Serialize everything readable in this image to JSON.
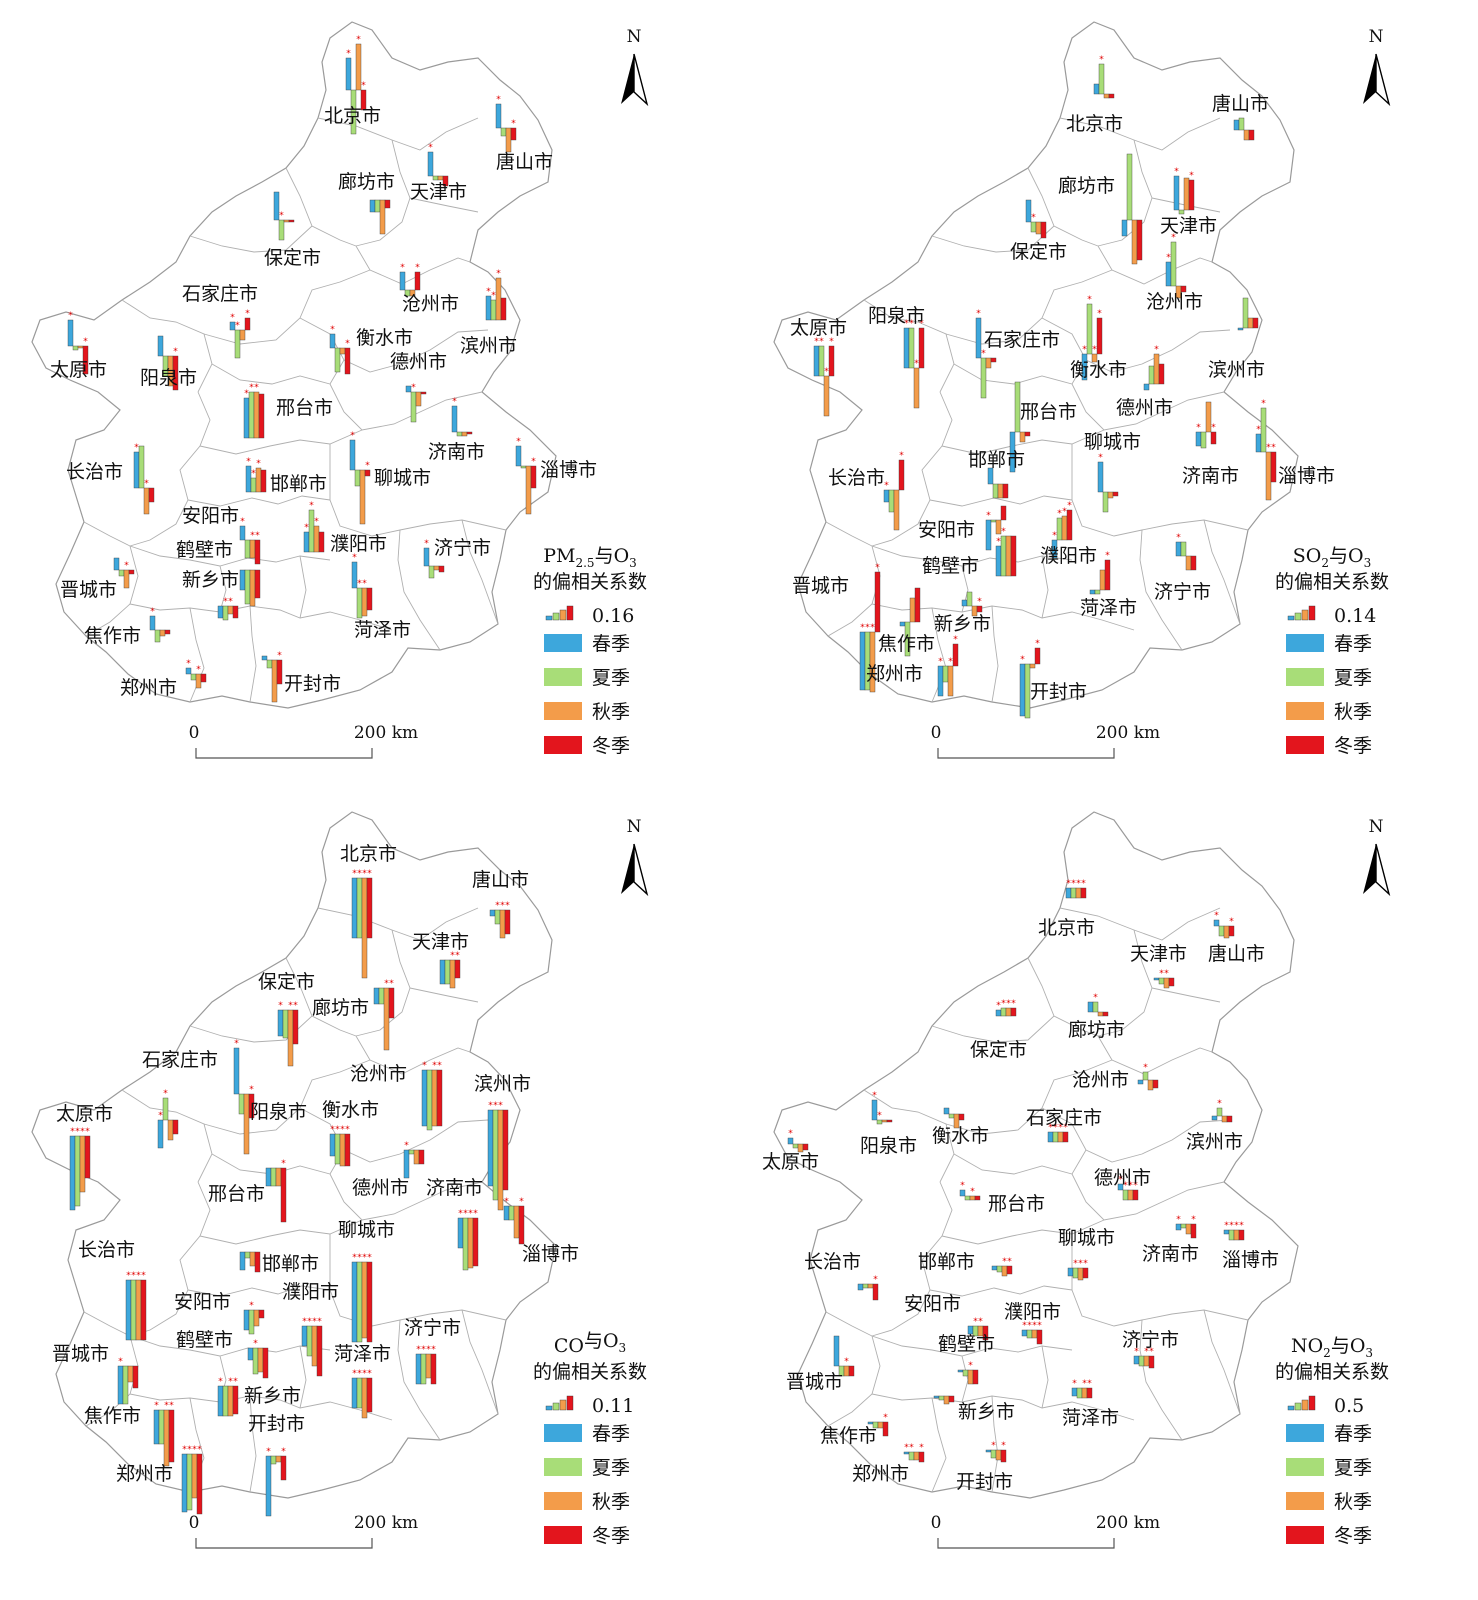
{
  "colors": {
    "spring": "#3da7dc",
    "summer": "#a8dd78",
    "autumn": "#f39c4a",
    "winter": "#e3151d",
    "star": "#e00000"
  },
  "season_labels": [
    "春季",
    "夏季",
    "秋季",
    "冬季"
  ],
  "north_label": "N",
  "scale": {
    "start": "0",
    "end": "200 km"
  },
  "panels": [
    {
      "id": "pm25",
      "legend_title_main": "PM",
      "legend_title_sub1": "2.5",
      "legend_title_mid": "与O",
      "legend_title_sub2": "3",
      "legend_title_line2": "的偏相关系数",
      "legend_ref_value": "0.16",
      "cities": [
        {
          "name": "北京市"
        },
        {
          "name": "唐山市"
        },
        {
          "name": "廊坊市"
        },
        {
          "name": "天津市"
        },
        {
          "name": "保定市"
        },
        {
          "name": "石家庄市"
        },
        {
          "name": "沧州市"
        },
        {
          "name": "衡水市"
        },
        {
          "name": "滨州市"
        },
        {
          "name": "德州市"
        },
        {
          "name": "太原市"
        },
        {
          "name": "阳泉市"
        },
        {
          "name": "邢台市"
        },
        {
          "name": "济南市"
        },
        {
          "name": "淄博市"
        },
        {
          "name": "长治市"
        },
        {
          "name": "聊城市"
        },
        {
          "name": "邯郸市"
        },
        {
          "name": "安阳市"
        },
        {
          "name": "鹤壁市"
        },
        {
          "name": "濮阳市"
        },
        {
          "name": "济宁市"
        },
        {
          "name": "晋城市"
        },
        {
          "name": "新乡市"
        },
        {
          "name": "焦作市"
        },
        {
          "name": "菏泽市"
        },
        {
          "name": "郑州市"
        },
        {
          "name": "开封市"
        }
      ]
    },
    {
      "id": "so2",
      "legend_title_main": "SO",
      "legend_title_sub1": "2",
      "legend_title_mid": "与O",
      "legend_title_sub2": "3",
      "legend_title_line2": "的偏相关系数",
      "legend_ref_value": "0.14",
      "cities": [
        {
          "name": "唐山市"
        },
        {
          "name": "北京市"
        },
        {
          "name": "廊坊市"
        },
        {
          "name": "天津市"
        },
        {
          "name": "保定市"
        },
        {
          "name": "沧州市"
        },
        {
          "name": "太原市"
        },
        {
          "name": "阳泉市"
        },
        {
          "name": "石家庄市"
        },
        {
          "name": "衡水市"
        },
        {
          "name": "滨州市"
        },
        {
          "name": "邢台市"
        },
        {
          "name": "德州市"
        },
        {
          "name": "聊城市"
        },
        {
          "name": "邯郸市"
        },
        {
          "name": "长治市"
        },
        {
          "name": "济南市"
        },
        {
          "name": "淄博市"
        },
        {
          "name": "安阳市"
        },
        {
          "name": "濮阳市"
        },
        {
          "name": "晋城市"
        },
        {
          "name": "鹤壁市"
        },
        {
          "name": "济宁市"
        },
        {
          "name": "菏泽市"
        },
        {
          "name": "新乡市"
        },
        {
          "name": "焦作市"
        },
        {
          "name": "郑州市"
        },
        {
          "name": "开封市"
        }
      ]
    },
    {
      "id": "co",
      "legend_title_main": "CO",
      "legend_title_sub1": "",
      "legend_title_mid": "与O",
      "legend_title_sub2": "3",
      "legend_title_line2": "的偏相关系数",
      "legend_ref_value": "0.11",
      "cities": [
        {
          "name": "北京市"
        },
        {
          "name": "唐山市"
        },
        {
          "name": "天津市"
        },
        {
          "name": "保定市"
        },
        {
          "name": "廊坊市"
        },
        {
          "name": "石家庄市"
        },
        {
          "name": "沧州市"
        },
        {
          "name": "滨州市"
        },
        {
          "name": "太原市"
        },
        {
          "name": "阳泉市"
        },
        {
          "name": "衡水市"
        },
        {
          "name": "邢台市"
        },
        {
          "name": "德州市"
        },
        {
          "name": "济南市"
        },
        {
          "name": "淄博市"
        },
        {
          "name": "聊城市"
        },
        {
          "name": "长治市"
        },
        {
          "name": "邯郸市"
        },
        {
          "name": "濮阳市"
        },
        {
          "name": "安阳市"
        },
        {
          "name": "济宁市"
        },
        {
          "name": "鹤壁市"
        },
        {
          "name": "晋城市"
        },
        {
          "name": "菏泽市"
        },
        {
          "name": "新乡市"
        },
        {
          "name": "焦作市"
        },
        {
          "name": "开封市"
        },
        {
          "name": "郑州市"
        }
      ]
    },
    {
      "id": "no2",
      "legend_title_main": "NO",
      "legend_title_sub1": "2",
      "legend_title_mid": "与O",
      "legend_title_sub2": "3",
      "legend_title_line2": "的偏相关系数",
      "legend_ref_value": "0.5",
      "cities": [
        {
          "name": "北京市"
        },
        {
          "name": "天津市"
        },
        {
          "name": "唐山市"
        },
        {
          "name": "保定市"
        },
        {
          "name": "廊坊市"
        },
        {
          "name": "沧州市"
        },
        {
          "name": "阳泉市"
        },
        {
          "name": "衡水市"
        },
        {
          "name": "石家庄市"
        },
        {
          "name": "滨州市"
        },
        {
          "name": "太原市"
        },
        {
          "name": "德州市"
        },
        {
          "name": "邢台市"
        },
        {
          "name": "聊城市"
        },
        {
          "name": "济南市"
        },
        {
          "name": "淄博市"
        },
        {
          "name": "长治市"
        },
        {
          "name": "邯郸市"
        },
        {
          "name": "安阳市"
        },
        {
          "name": "濮阳市"
        },
        {
          "name": "鹤壁市"
        },
        {
          "name": "济宁市"
        },
        {
          "name": "晋城市"
        },
        {
          "name": "菏泽市"
        },
        {
          "name": "新乡市"
        },
        {
          "name": "焦作市"
        },
        {
          "name": "郑州市"
        },
        {
          "name": "开封市"
        }
      ]
    }
  ]
}
